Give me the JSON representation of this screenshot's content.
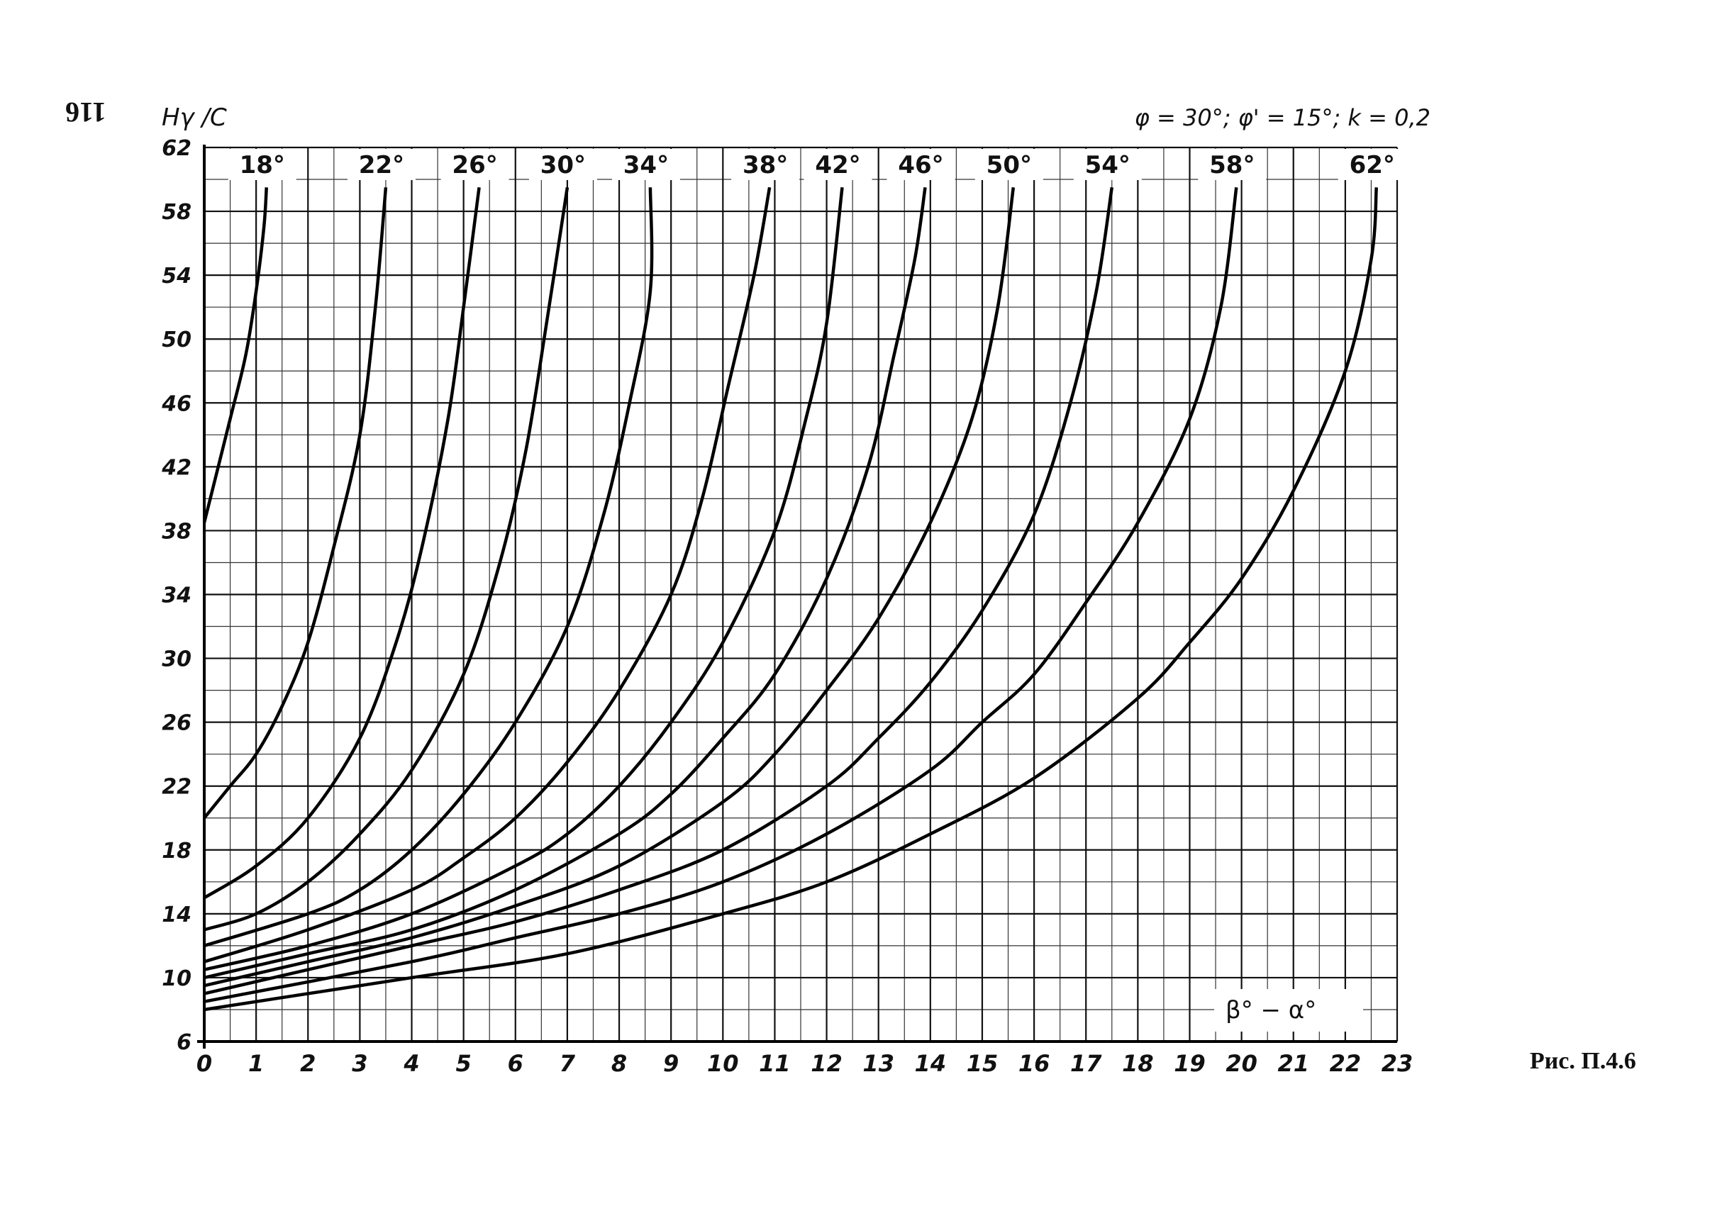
{
  "page_number": "116",
  "figure_caption": "Рис. П.4.6",
  "chart_data": {
    "type": "line",
    "title": "φ = 30°; φ' = 15°; k = 0,2",
    "ylabel": "Hγ /C",
    "xlabel": "β° − α°",
    "xlim": [
      0,
      23
    ],
    "ylim": [
      6,
      62
    ],
    "x_ticks": [
      0,
      1,
      2,
      3,
      4,
      5,
      6,
      7,
      8,
      9,
      10,
      11,
      12,
      13,
      14,
      15,
      16,
      17,
      18,
      19,
      20,
      21,
      22,
      23
    ],
    "y_ticks": [
      6,
      10,
      14,
      18,
      22,
      26,
      30,
      34,
      38,
      42,
      46,
      50,
      54,
      58,
      62
    ],
    "grid": true,
    "series": [
      {
        "name": "18°",
        "points": [
          [
            0,
            38.5
          ],
          [
            0.5,
            45
          ],
          [
            0.8,
            49
          ],
          [
            1.0,
            53
          ],
          [
            1.15,
            57
          ],
          [
            1.2,
            59.5
          ]
        ]
      },
      {
        "name": "22°",
        "points": [
          [
            0,
            20
          ],
          [
            0.5,
            22
          ],
          [
            1,
            24
          ],
          [
            1.5,
            27
          ],
          [
            2,
            31
          ],
          [
            2.5,
            37
          ],
          [
            3,
            44
          ],
          [
            3.3,
            52
          ],
          [
            3.5,
            59.5
          ]
        ]
      },
      {
        "name": "26°",
        "points": [
          [
            0,
            15
          ],
          [
            1,
            17
          ],
          [
            2,
            20
          ],
          [
            3,
            25
          ],
          [
            3.7,
            31
          ],
          [
            4.2,
            37
          ],
          [
            4.7,
            45
          ],
          [
            5.0,
            52
          ],
          [
            5.3,
            59.5
          ]
        ]
      },
      {
        "name": "30°",
        "points": [
          [
            0,
            13
          ],
          [
            1,
            14
          ],
          [
            2,
            16
          ],
          [
            3,
            19
          ],
          [
            4,
            23
          ],
          [
            5,
            29
          ],
          [
            5.7,
            36
          ],
          [
            6.2,
            43
          ],
          [
            6.6,
            51
          ],
          [
            7.0,
            59.5
          ]
        ]
      },
      {
        "name": "34°",
        "points": [
          [
            0,
            12
          ],
          [
            2,
            14
          ],
          [
            3,
            15.5
          ],
          [
            4,
            18
          ],
          [
            5,
            21.5
          ],
          [
            6,
            26
          ],
          [
            7,
            32
          ],
          [
            7.7,
            39
          ],
          [
            8.2,
            46
          ],
          [
            8.6,
            53
          ],
          [
            8.6,
            59.5
          ]
        ]
      },
      {
        "name": "38°",
        "points": [
          [
            0,
            11
          ],
          [
            2,
            13
          ],
          [
            4,
            15.5
          ],
          [
            5,
            17.5
          ],
          [
            6,
            20
          ],
          [
            7,
            23.5
          ],
          [
            8,
            28
          ],
          [
            9,
            34
          ],
          [
            9.6,
            40
          ],
          [
            10.1,
            47
          ],
          [
            10.6,
            54
          ],
          [
            10.9,
            59.5
          ]
        ]
      },
      {
        "name": "42°",
        "points": [
          [
            0,
            10.5
          ],
          [
            2,
            12
          ],
          [
            4,
            14
          ],
          [
            6,
            17
          ],
          [
            7,
            19
          ],
          [
            8,
            22
          ],
          [
            9,
            26
          ],
          [
            10,
            31
          ],
          [
            11,
            38
          ],
          [
            11.6,
            45
          ],
          [
            12.0,
            51
          ],
          [
            12.3,
            59.5
          ]
        ]
      },
      {
        "name": "46°",
        "points": [
          [
            0,
            10
          ],
          [
            2,
            11.5
          ],
          [
            4,
            13
          ],
          [
            6,
            15.5
          ],
          [
            8,
            19
          ],
          [
            9,
            21.5
          ],
          [
            10,
            25
          ],
          [
            11,
            29
          ],
          [
            12,
            35
          ],
          [
            12.8,
            42
          ],
          [
            13.3,
            49
          ],
          [
            13.7,
            55
          ],
          [
            13.9,
            59.5
          ]
        ]
      },
      {
        "name": "50°",
        "points": [
          [
            0,
            9.5
          ],
          [
            2,
            11
          ],
          [
            4,
            12.5
          ],
          [
            6,
            14.5
          ],
          [
            8,
            17
          ],
          [
            10,
            21
          ],
          [
            11,
            24
          ],
          [
            12,
            28
          ],
          [
            13,
            32.5
          ],
          [
            14,
            38.5
          ],
          [
            14.8,
            45
          ],
          [
            15.3,
            52
          ],
          [
            15.6,
            59.5
          ]
        ]
      },
      {
        "name": "54°",
        "points": [
          [
            0,
            9
          ],
          [
            4,
            12
          ],
          [
            6,
            13.5
          ],
          [
            8,
            15.5
          ],
          [
            10,
            18
          ],
          [
            12,
            22
          ],
          [
            13,
            25
          ],
          [
            14,
            28.5
          ],
          [
            15,
            33
          ],
          [
            16,
            39
          ],
          [
            16.7,
            46
          ],
          [
            17.2,
            53
          ],
          [
            17.5,
            59.5
          ]
        ]
      },
      {
        "name": "58°",
        "points": [
          [
            0,
            8.5
          ],
          [
            4,
            11
          ],
          [
            6,
            12.5
          ],
          [
            8,
            14
          ],
          [
            10,
            16
          ],
          [
            12,
            19
          ],
          [
            14,
            23
          ],
          [
            15,
            26
          ],
          [
            16,
            29
          ],
          [
            17,
            33.5
          ],
          [
            18,
            38.5
          ],
          [
            19,
            45
          ],
          [
            19.6,
            52
          ],
          [
            19.9,
            59.5
          ]
        ]
      },
      {
        "name": "62°",
        "points": [
          [
            0,
            8
          ],
          [
            4,
            10
          ],
          [
            7,
            11.5
          ],
          [
            10,
            14
          ],
          [
            12,
            16
          ],
          [
            14,
            19
          ],
          [
            16,
            22.5
          ],
          [
            18,
            27.5
          ],
          [
            19,
            31
          ],
          [
            20,
            35
          ],
          [
            21,
            40.5
          ],
          [
            22,
            48
          ],
          [
            22.5,
            55
          ],
          [
            22.6,
            59.5
          ]
        ]
      }
    ]
  }
}
